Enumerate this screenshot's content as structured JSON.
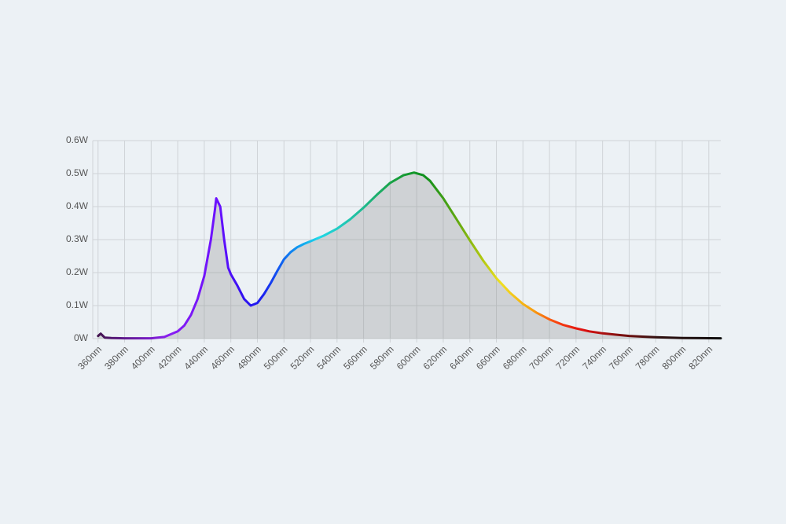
{
  "chart_data": {
    "type": "line",
    "x": [
      360,
      362,
      365,
      370,
      380,
      390,
      400,
      410,
      420,
      425,
      430,
      435,
      440,
      445,
      448,
      449,
      452,
      455,
      458,
      460,
      465,
      470,
      475,
      480,
      485,
      490,
      495,
      500,
      505,
      510,
      515,
      520,
      530,
      540,
      550,
      560,
      570,
      580,
      590,
      598,
      605,
      610,
      620,
      630,
      640,
      650,
      660,
      670,
      680,
      690,
      700,
      710,
      720,
      730,
      740,
      750,
      760,
      770,
      780,
      800,
      829
    ],
    "values": [
      0.008,
      0.015,
      0.003,
      0.002,
      0.001,
      0.001,
      0.001,
      0.005,
      0.022,
      0.04,
      0.072,
      0.12,
      0.19,
      0.3,
      0.39,
      0.425,
      0.4,
      0.3,
      0.215,
      0.195,
      0.16,
      0.12,
      0.1,
      0.108,
      0.135,
      0.168,
      0.205,
      0.24,
      0.262,
      0.277,
      0.287,
      0.295,
      0.312,
      0.333,
      0.362,
      0.397,
      0.436,
      0.472,
      0.495,
      0.503,
      0.495,
      0.478,
      0.425,
      0.362,
      0.298,
      0.237,
      0.183,
      0.14,
      0.105,
      0.079,
      0.058,
      0.042,
      0.031,
      0.022,
      0.016,
      0.012,
      0.008,
      0.006,
      0.004,
      0.002,
      0.001
    ],
    "xlim": [
      356,
      829
    ],
    "ylim": [
      0,
      0.6
    ],
    "xticks": [
      {
        "value": 360,
        "label": "360nm"
      },
      {
        "value": 380,
        "label": "380nm"
      },
      {
        "value": 400,
        "label": "400nm"
      },
      {
        "value": 420,
        "label": "420nm"
      },
      {
        "value": 440,
        "label": "440nm"
      },
      {
        "value": 460,
        "label": "460nm"
      },
      {
        "value": 480,
        "label": "480nm"
      },
      {
        "value": 500,
        "label": "500nm"
      },
      {
        "value": 520,
        "label": "520nm"
      },
      {
        "value": 540,
        "label": "540nm"
      },
      {
        "value": 560,
        "label": "560nm"
      },
      {
        "value": 580,
        "label": "580nm"
      },
      {
        "value": 600,
        "label": "600nm"
      },
      {
        "value": 620,
        "label": "620nm"
      },
      {
        "value": 640,
        "label": "640nm"
      },
      {
        "value": 660,
        "label": "660nm"
      },
      {
        "value": 680,
        "label": "680nm"
      },
      {
        "value": 700,
        "label": "700nm"
      },
      {
        "value": 720,
        "label": "720nm"
      },
      {
        "value": 740,
        "label": "740nm"
      },
      {
        "value": 760,
        "label": "760nm"
      },
      {
        "value": 780,
        "label": "780nm"
      },
      {
        "value": 800,
        "label": "800nm"
      },
      {
        "value": 820,
        "label": "820nm"
      }
    ],
    "yticks": [
      {
        "value": 0,
        "label": "0W"
      },
      {
        "value": 0.1,
        "label": "0.1W"
      },
      {
        "value": 0.2,
        "label": "0.2W"
      },
      {
        "value": 0.3,
        "label": "0.3W"
      },
      {
        "value": 0.4,
        "label": "0.4W"
      },
      {
        "value": 0.5,
        "label": "0.5W"
      },
      {
        "value": 0.6,
        "label": "0.6W"
      }
    ],
    "grid": true
  }
}
